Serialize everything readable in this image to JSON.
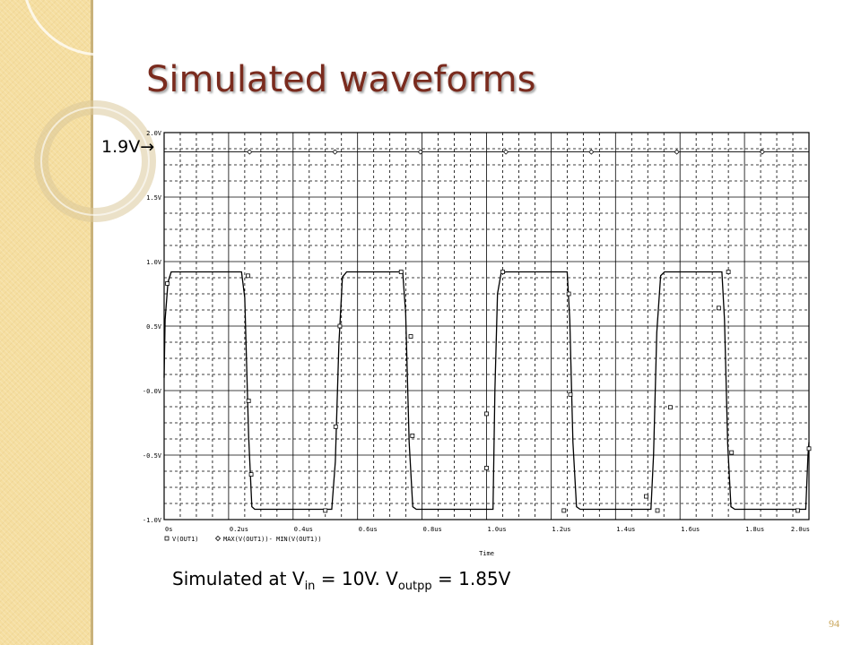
{
  "slide": {
    "title": "Simulated waveforms",
    "annotation": "1.9V",
    "annotation_arrow": "→",
    "caption": {
      "prefix": "Simulated at V",
      "sub1": "in",
      "mid": " = 10V. V",
      "sub2": "outpp",
      "suffix": " = 1.85V"
    },
    "page_number": "94"
  },
  "colors": {
    "title": "#7a2b1e",
    "sidebar": "#f5dea0",
    "trace": "#000000",
    "grid": "#000000"
  },
  "chart_data": {
    "type": "line",
    "title": "",
    "xlabel": "Time",
    "ylabel": "",
    "xlim": [
      0,
      2.0
    ],
    "ylim": [
      -1.0,
      2.0
    ],
    "x_ticks": [
      "0s",
      "0.2us",
      "0.4us",
      "0.6us",
      "0.8us",
      "1.0us",
      "1.2us",
      "1.4us",
      "1.6us",
      "1.8us",
      "2.0us"
    ],
    "y_ticks": [
      "-1.0V",
      "-0.5V",
      "-0.0V",
      "0.5V",
      "1.0V",
      "1.5V",
      "2.0V"
    ],
    "grid": true,
    "legend": [
      "V(OUT1)",
      "MAX(V(OUT1))- MIN(V(OUT1))"
    ],
    "series": [
      {
        "name": "V(OUT1)",
        "marker": "square",
        "x": [
          0,
          0.003,
          0.012,
          0.022,
          0.24,
          0.25,
          0.262,
          0.272,
          0.281,
          0.52,
          0.531,
          0.542,
          0.553,
          0.566,
          0.74,
          0.749,
          0.76,
          0.771,
          0.782,
          1.02,
          1.026,
          1.034,
          1.045,
          1.06,
          1.25,
          1.258,
          1.268,
          1.279,
          1.29,
          1.51,
          1.518,
          1.528,
          1.54,
          1.552,
          1.73,
          1.738,
          1.748,
          1.758,
          1.77,
          1.99,
          1.997,
          2.0
        ],
        "y": [
          0.1,
          0.55,
          0.84,
          0.92,
          0.92,
          0.72,
          -0.35,
          -0.9,
          -0.92,
          -0.92,
          -0.55,
          0.35,
          0.88,
          0.92,
          0.92,
          0.6,
          -0.4,
          -0.9,
          -0.92,
          -0.92,
          0.0,
          0.75,
          0.91,
          0.92,
          0.92,
          0.55,
          -0.4,
          -0.9,
          -0.92,
          -0.92,
          -0.5,
          0.45,
          0.89,
          0.92,
          0.92,
          0.55,
          -0.42,
          -0.9,
          -0.92,
          -0.92,
          -0.5,
          -0.4
        ],
        "markers_x": [
          0.01,
          0.26,
          0.262,
          0.27,
          0.5,
          0.532,
          0.545,
          0.735,
          0.765,
          0.77,
          1.0,
          1.0,
          1.05,
          1.24,
          1.255,
          1.26,
          1.495,
          1.53,
          1.57,
          1.72,
          1.75,
          1.76,
          1.965,
          2.0
        ],
        "markers_y": [
          0.83,
          0.89,
          -0.08,
          -0.65,
          -0.93,
          -0.28,
          0.5,
          0.92,
          0.42,
          -0.35,
          -0.6,
          -0.18,
          0.92,
          -0.93,
          0.75,
          -0.03,
          -0.82,
          -0.93,
          -0.13,
          0.64,
          0.92,
          -0.48,
          -0.93,
          -0.45
        ]
      },
      {
        "name": "MAX(V(OUT1))- MIN(V(OUT1))",
        "marker": "diamond",
        "x": [
          0,
          2.0
        ],
        "y": [
          1.85,
          1.85
        ],
        "markers_x": [
          0.265,
          0.53,
          0.795,
          1.06,
          1.325,
          1.59,
          1.855
        ],
        "markers_y": [
          1.85,
          1.85,
          1.85,
          1.85,
          1.85,
          1.85,
          1.85
        ]
      }
    ]
  }
}
